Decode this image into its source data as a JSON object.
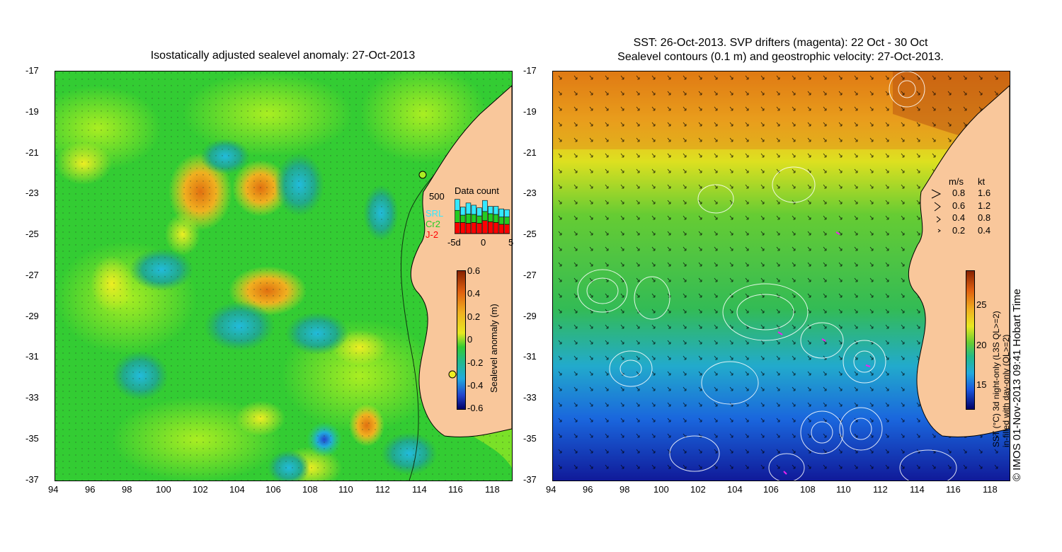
{
  "left": {
    "title": "Isostatically adjusted sealevel anomaly: 27-Oct-2013",
    "colorbar": {
      "label": "Sealevel anomaly (m)",
      "ticks": [
        "0.6",
        "0.4",
        "0.2",
        "0",
        "-0.2",
        "-0.4",
        "-0.6"
      ]
    },
    "data_count": {
      "title": "Data count",
      "ymax_label": "500",
      "legend": [
        {
          "name": "SRL",
          "color": "#33e8ff"
        },
        {
          "name": "Cr2",
          "color": "#22cc22"
        },
        {
          "name": "J-2",
          "color": "#ff0000"
        }
      ],
      "xticks": [
        "-5d",
        "0",
        "5"
      ],
      "bars": [
        {
          "j2": 0.3,
          "cr2": 0.33,
          "srl": 0.3
        },
        {
          "j2": 0.3,
          "cr2": 0.2,
          "srl": 0.22
        },
        {
          "j2": 0.28,
          "cr2": 0.25,
          "srl": 0.3
        },
        {
          "j2": 0.3,
          "cr2": 0.22,
          "srl": 0.25
        },
        {
          "j2": 0.28,
          "cr2": 0.2,
          "srl": 0.22
        },
        {
          "j2": 0.35,
          "cr2": 0.25,
          "srl": 0.3
        },
        {
          "j2": 0.32,
          "cr2": 0.22,
          "srl": 0.2
        },
        {
          "j2": 0.3,
          "cr2": 0.22,
          "srl": 0.22
        },
        {
          "j2": 0.25,
          "cr2": 0.2,
          "srl": 0.22
        },
        {
          "j2": 0.25,
          "cr2": 0.2,
          "srl": 0.2
        }
      ]
    }
  },
  "right": {
    "title_line1": "SST: 26-Oct-2013. SVP drifters (magenta): 22 Oct - 30 Oct",
    "title_line2": "Sealevel contours (0.1 m) and geostrophic velocity: 27-Oct-2013.",
    "colorbar": {
      "label_line1": "SST (°C) 3d night-only (L3S QL>=2)",
      "label_line2": "in-filled with day-only (QL>=2)",
      "ticks": [
        "25",
        "20",
        "15"
      ]
    },
    "velocity_legend": {
      "header_ms": "m/s",
      "header_kt": "kt",
      "rows": [
        {
          "ms": "0.8",
          "kt": "1.6"
        },
        {
          "ms": "0.6",
          "kt": "1.2"
        },
        {
          "ms": "0.4",
          "kt": "0.8"
        },
        {
          "ms": "0.2",
          "kt": "0.4"
        }
      ]
    },
    "credit": "© IMOS 01-Nov-2013 09:41 Hobart Time"
  },
  "axes": {
    "lat_ticks": [
      "-17",
      "-19",
      "-21",
      "-23",
      "-25",
      "-27",
      "-29",
      "-31",
      "-33",
      "-35",
      "-37"
    ],
    "lon_ticks": [
      "94",
      "96",
      "98",
      "100",
      "102",
      "104",
      "106",
      "108",
      "110",
      "112",
      "114",
      "116",
      "118"
    ]
  },
  "colors": {
    "land": "#f9c79b",
    "sla_background": "#33cc33",
    "sst_warm": "#f0a020"
  }
}
